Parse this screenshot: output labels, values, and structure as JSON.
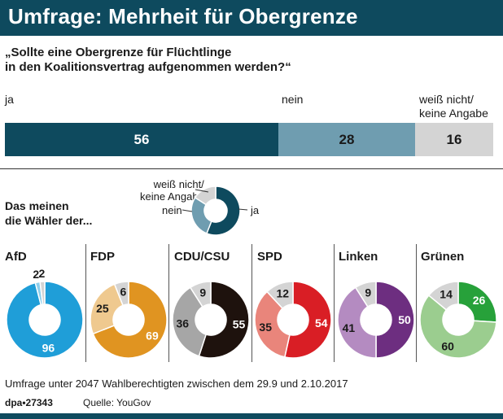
{
  "header": {
    "title": "Umfrage: Mehrheit für Obergrenze"
  },
  "colors": {
    "header": "#0e4a5e",
    "ja": "#0e4a5e",
    "nein": "#6f9db0",
    "weiss": "#d4d4d4"
  },
  "chart_data": [
    {
      "type": "bar",
      "title": "„Sollte eine Obergrenze für Flüchtlinge in den Koalitionsvertrag aufgenommen werden?“",
      "question_lines": [
        "„Sollte eine Obergrenze für Flüchtlinge",
        "in den Koalitionsvertrag aufgenommen werden?“"
      ],
      "categories": [
        "ja",
        "nein",
        "weiß nicht/ keine Angabe"
      ],
      "labels": [
        [
          "ja"
        ],
        [
          "nein"
        ],
        [
          "weiß nicht/",
          "keine Angabe"
        ]
      ],
      "values": [
        56,
        28,
        16
      ],
      "unit": "%"
    },
    {
      "type": "pie",
      "title": "Das meinen die Wähler der...",
      "title_lines": [
        "Das meinen",
        "die Wähler der..."
      ],
      "legend": {
        "ja": "ja",
        "nein": "nein",
        "weiss_lines": [
          "weiß nicht/",
          "keine Angabe"
        ]
      },
      "series": [
        {
          "name": "AfD",
          "ja": 96,
          "nein": 2,
          "weiss": 2,
          "color": "#1f9ed8",
          "light": "#8ecfec"
        },
        {
          "name": "FDP",
          "ja": 69,
          "nein": 25,
          "weiss": 6,
          "color": "#e09421",
          "light": "#efc98f"
        },
        {
          "name": "CDU/CSU",
          "ja": 55,
          "nein": 36,
          "weiss": 9,
          "color": "#1e120d",
          "light": "#a6a6a6"
        },
        {
          "name": "SPD",
          "ja": 54,
          "nein": 35,
          "weiss": 12,
          "color": "#d91e25",
          "light": "#e9857b"
        },
        {
          "name": "Linken",
          "ja": 50,
          "nein": 41,
          "weiss": 9,
          "color": "#6d2e80",
          "light": "#b48bc1"
        },
        {
          "name": "Grünen",
          "ja": 26,
          "nein": 60,
          "weiss": 14,
          "color": "#27a13a",
          "light": "#9bcd8f"
        }
      ]
    }
  ],
  "footer": {
    "note": "Umfrage unter 2047 Wahlberechtigten zwischen dem 29.9 und 2.10.2017",
    "credit": "dpa•27343",
    "source": "Quelle: YouGov"
  }
}
